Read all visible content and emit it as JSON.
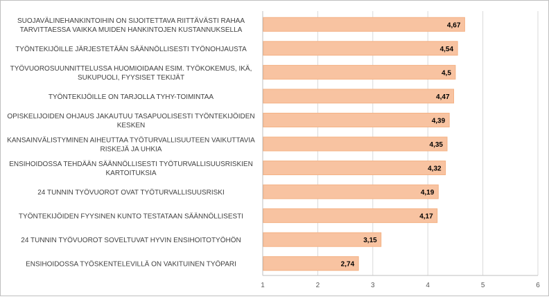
{
  "chart_data": {
    "type": "bar",
    "orientation": "horizontal",
    "categories": [
      [
        "SUOJAVÄLINEHANKINTOIHIN ON SIJOITETTAVA RIITTÄVÄSTI RAHAA",
        "TARVITTAESSA VAIKKA MUIDEN HANKINTOJEN KUSTANNUKSELLA"
      ],
      [
        "TYÖNTEKIJÖILLE JÄRJESTETÄÄN SÄÄNNÖLLISESTI TYÖNOHJAUSTA"
      ],
      [
        "TYÖVUOROSUUNNITTELUSSA HUOMIOIDAAN ESIM. TYÖKOKEMUS, IKÄ,",
        "SUKUPUOLI, FYYSISET TEKIJÄT"
      ],
      [
        "TYÖNTEKIJÖILLE ON TARJOLLA TYHY-TOIMINTAA"
      ],
      [
        "OPISKELIJOIDEN OHJAUS JAKAUTUU TASAPUOLISESTI TYÖNTEKIJÖIDEN",
        "KESKEN"
      ],
      [
        "KANSAINVÄLISTYMINEN AIHEUTTAA TYÖTURVALLISUUTEEN VAIKUTTAVIA",
        "RISKEJÄ JA UHKIA"
      ],
      [
        "ENSIHOIDOSSA TEHDÄÄN SÄÄNNÖLLISESTI TYÖTURVALLISUUSRISKIEN",
        "KARTOITUKSIA"
      ],
      [
        "24 TUNNIN TYÖVUOROT OVAT TYÖTURVALLISUUSRISKI"
      ],
      [
        "TYÖNTEKIJÖIDEN FYYSINEN KUNTO TESTATAAN SÄÄNNÖLLISESTI"
      ],
      [
        "24 TUNNIN TYÖVUOROT SOVELTUVAT HYVIN ENSIHOITOTYÖHÖN"
      ],
      [
        "ENSIHOIDOSSA TYÖSKENTELEVILLÄ ON VAKITUINEN TYÖPARI"
      ]
    ],
    "values": [
      4.67,
      4.54,
      4.5,
      4.47,
      4.39,
      4.35,
      4.32,
      4.19,
      4.17,
      3.15,
      2.74
    ],
    "value_labels": [
      "4,67",
      "4,54",
      "4,5",
      "4,47",
      "4,39",
      "4,35",
      "4,32",
      "4,19",
      "4,17",
      "3,15",
      "2,74"
    ],
    "xlim": [
      1,
      6
    ],
    "xticks": [
      "1",
      "2",
      "3",
      "4",
      "5",
      "6"
    ],
    "title": "",
    "xlabel": "",
    "ylabel": "",
    "gridlines": "vertical",
    "legend": "none",
    "colors": {
      "bar_fill": "#f8c3a1",
      "bar_stroke": "#f4b183",
      "grid": "#d9d9d9",
      "axis": "#bfbfbf"
    }
  }
}
